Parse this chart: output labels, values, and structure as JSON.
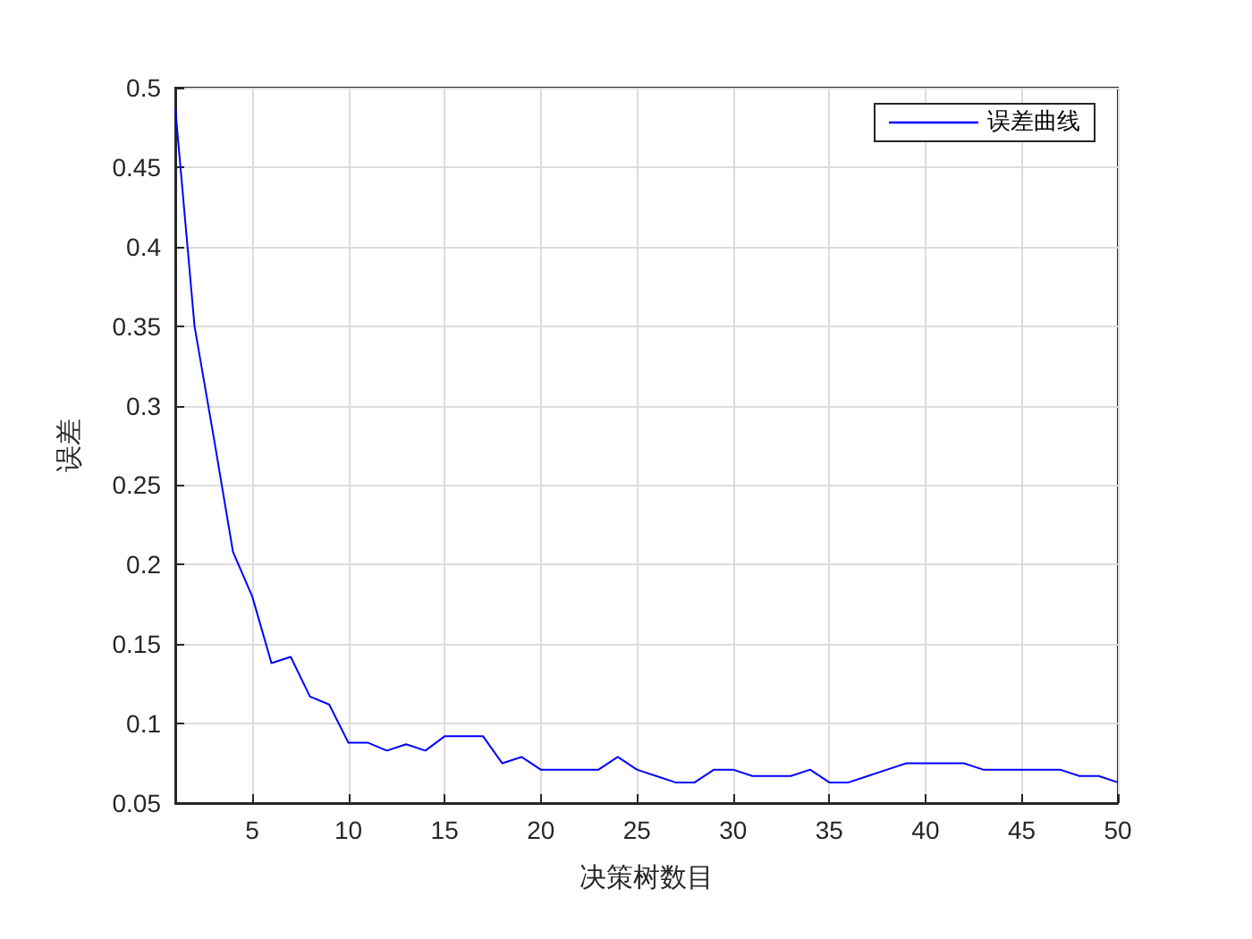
{
  "chart_data": {
    "type": "line",
    "xlabel": "决策树数目",
    "ylabel": "误差",
    "x": [
      1,
      2,
      3,
      4,
      5,
      6,
      7,
      8,
      9,
      10,
      11,
      12,
      13,
      14,
      15,
      16,
      17,
      18,
      19,
      20,
      21,
      22,
      23,
      24,
      25,
      26,
      27,
      28,
      29,
      30,
      31,
      32,
      33,
      34,
      35,
      36,
      37,
      38,
      39,
      40,
      41,
      42,
      43,
      44,
      45,
      46,
      47,
      48,
      49,
      50
    ],
    "series": [
      {
        "name": "误差曲线",
        "color": "#0000ff",
        "values": [
          0.487,
          0.35,
          0.28,
          0.208,
          0.18,
          0.138,
          0.142,
          0.117,
          0.112,
          0.088,
          0.088,
          0.083,
          0.087,
          0.083,
          0.092,
          0.092,
          0.092,
          0.075,
          0.079,
          0.071,
          0.071,
          0.071,
          0.071,
          0.079,
          0.071,
          0.067,
          0.063,
          0.063,
          0.071,
          0.071,
          0.067,
          0.067,
          0.067,
          0.071,
          0.063,
          0.063,
          0.067,
          0.071,
          0.075,
          0.075,
          0.075,
          0.075,
          0.071,
          0.071,
          0.071,
          0.071,
          0.071,
          0.067,
          0.067,
          0.063
        ]
      }
    ],
    "xlim": [
      1,
      50
    ],
    "xticks": [
      5,
      10,
      15,
      20,
      25,
      30,
      35,
      40,
      45,
      50
    ],
    "ylim": [
      0.05,
      0.5
    ],
    "yticks": [
      0.05,
      0.1,
      0.15,
      0.2,
      0.25,
      0.3,
      0.35,
      0.4,
      0.45,
      0.5
    ],
    "grid": true,
    "legend": "top right",
    "marker": "none",
    "line_style": "solid"
  }
}
